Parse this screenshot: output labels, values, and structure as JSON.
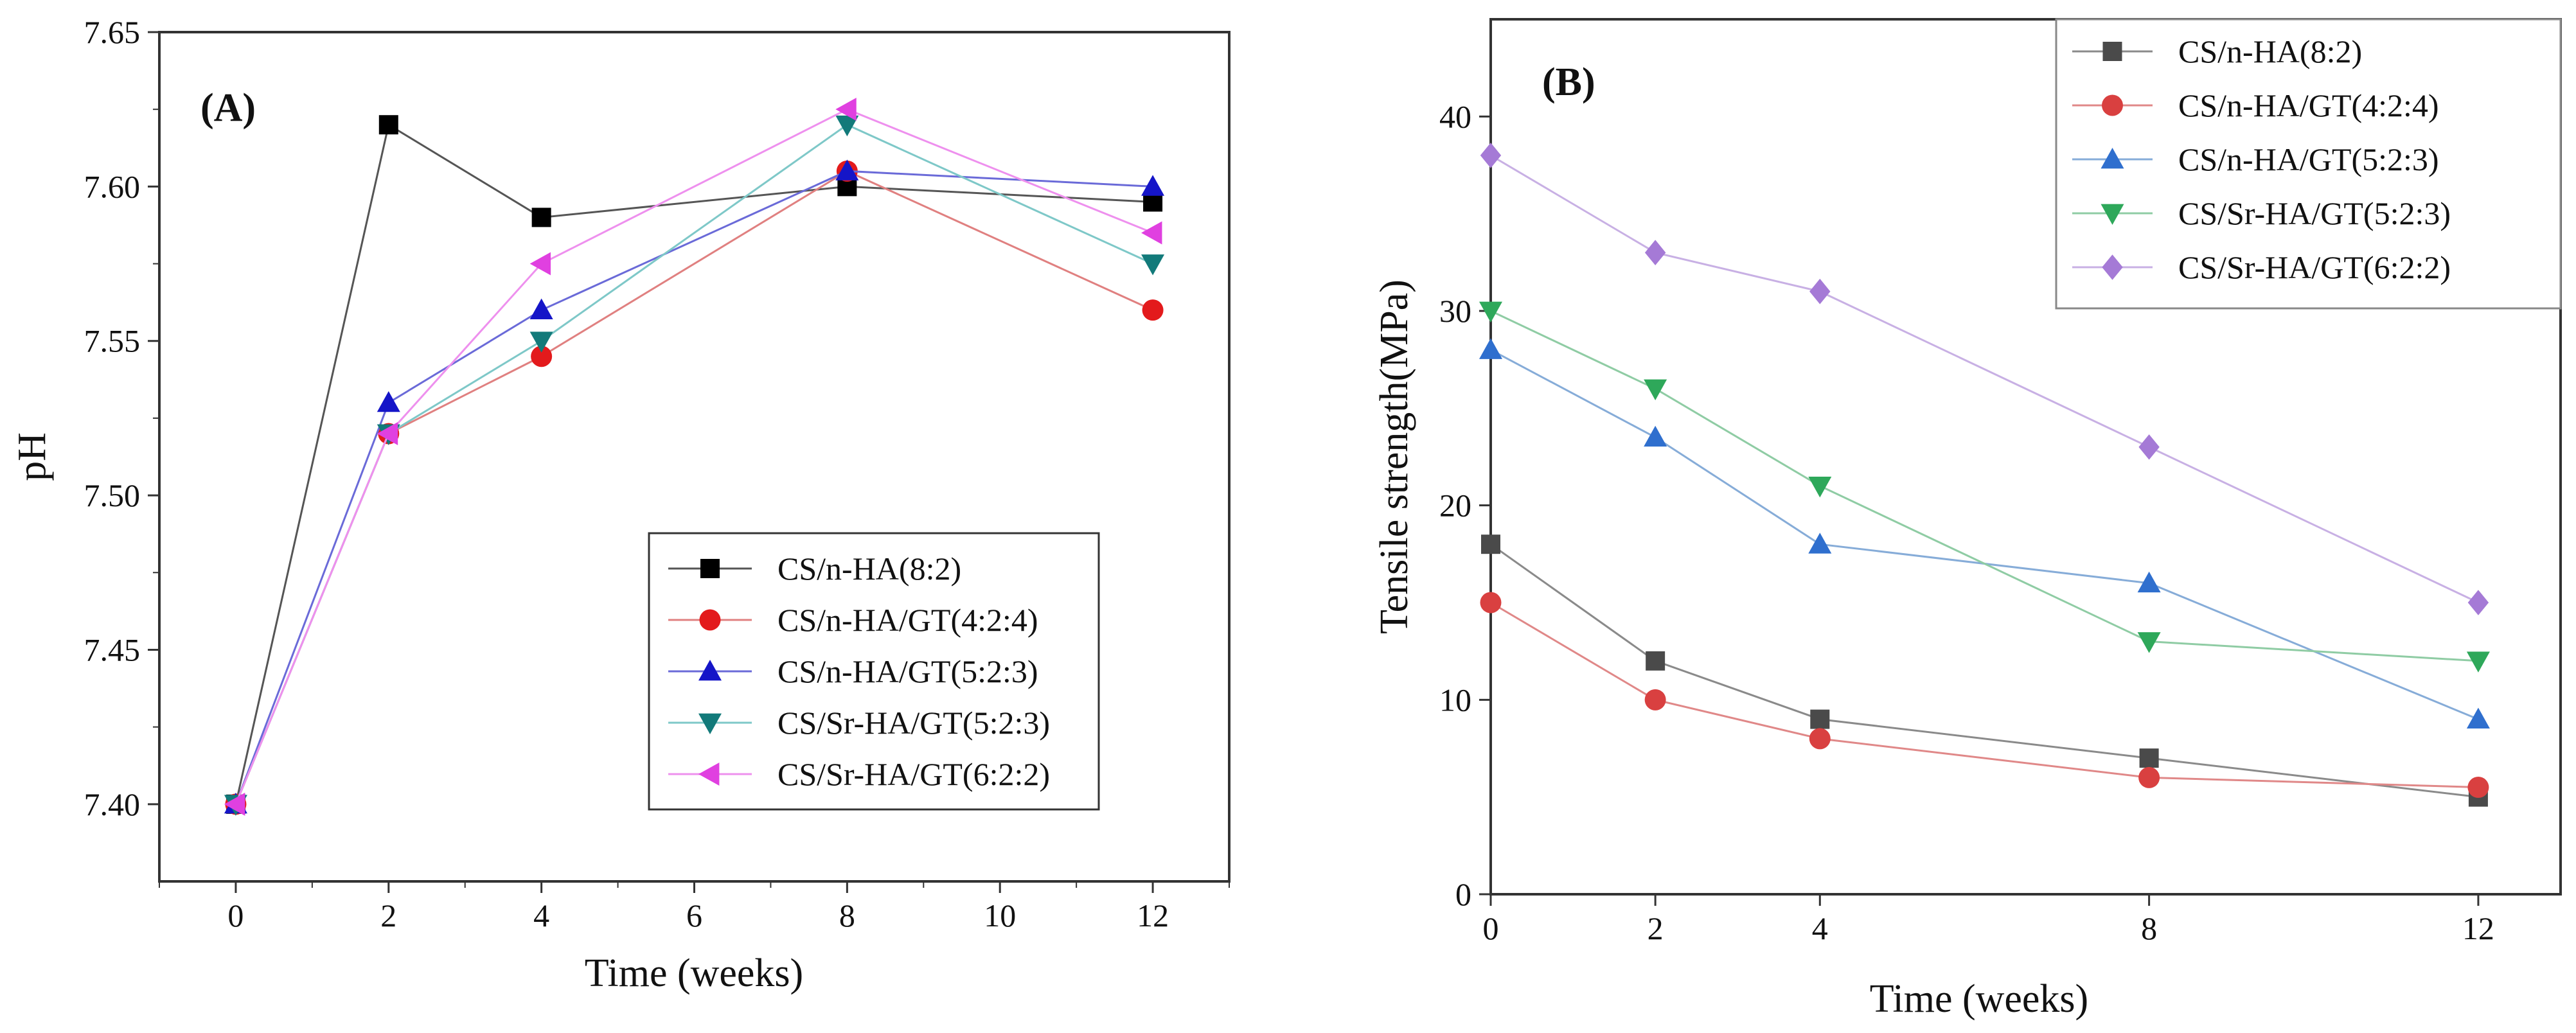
{
  "chart_data": [
    {
      "type": "line",
      "panel_label": "(A)",
      "xlabel": "Time (weeks)",
      "ylabel": "pH",
      "xlim": [
        -1,
        13
      ],
      "ylim": [
        7.375,
        7.65
      ],
      "x_ticks": [
        0,
        2,
        4,
        6,
        8,
        10,
        12
      ],
      "x_tick_labels": [
        "0",
        "2",
        "4",
        "6",
        "8",
        "10",
        "12"
      ],
      "y_ticks": [
        7.4,
        7.45,
        7.5,
        7.55,
        7.6,
        7.65
      ],
      "y_tick_labels": [
        "7.40",
        "7.45",
        "7.50",
        "7.55",
        "7.60",
        "7.65"
      ],
      "legend_position": "lower-right",
      "series": [
        {
          "name": "CS/n-HA(8:2)",
          "color": "#000000",
          "line_color": "#555555",
          "marker": "square",
          "points": [
            [
              0,
              7.4
            ],
            [
              2,
              7.62
            ],
            [
              4,
              7.59
            ],
            [
              8,
              7.6
            ],
            [
              12,
              7.595
            ]
          ]
        },
        {
          "name": "CS/n-HA/GT(4:2:4)",
          "color": "#e31a1c",
          "line_color": "#e08080",
          "marker": "circle",
          "points": [
            [
              0,
              7.4
            ],
            [
              2,
              7.52
            ],
            [
              4,
              7.545
            ],
            [
              8,
              7.605
            ],
            [
              12,
              7.56
            ]
          ]
        },
        {
          "name": "CS/n-HA/GT(5:2:3)",
          "color": "#1515c8",
          "line_color": "#6a6ad8",
          "marker": "triangle-up",
          "points": [
            [
              0,
              7.4
            ],
            [
              2,
              7.53
            ],
            [
              4,
              7.56
            ],
            [
              8,
              7.605
            ],
            [
              12,
              7.6
            ]
          ]
        },
        {
          "name": "CS/Sr-HA/GT(5:2:3)",
          "color": "#127a7a",
          "line_color": "#7ec8c8",
          "marker": "triangle-down",
          "points": [
            [
              0,
              7.4
            ],
            [
              2,
              7.52
            ],
            [
              4,
              7.55
            ],
            [
              8,
              7.62
            ],
            [
              12,
              7.575
            ]
          ]
        },
        {
          "name": "CS/Sr-HA/GT(6:2:2)",
          "color": "#e040e0",
          "line_color": "#ee90ee",
          "marker": "triangle-left",
          "points": [
            [
              0,
              7.4
            ],
            [
              2,
              7.52
            ],
            [
              4,
              7.575
            ],
            [
              8,
              7.625
            ],
            [
              12,
              7.585
            ]
          ]
        }
      ]
    },
    {
      "type": "line",
      "panel_label": "(B)",
      "xlabel": "Time (weeks)",
      "ylabel": "Tensile strength(MPa)",
      "xlim": [
        0,
        13
      ],
      "ylim": [
        0,
        45
      ],
      "x_ticks": [
        0,
        2,
        4,
        8,
        12
      ],
      "x_tick_labels": [
        "0",
        "2",
        "4",
        "8",
        "12"
      ],
      "y_ticks": [
        0,
        10,
        20,
        30,
        40
      ],
      "y_tick_labels": [
        "0",
        "10",
        "20",
        "30",
        "40"
      ],
      "legend_position": "top-right",
      "x_positions_note": "",
      "series": [
        {
          "name": "CS/n-HA(8:2)",
          "color": "#4a4a4a",
          "line_color": "#8a8a8a",
          "marker": "square",
          "points": [
            [
              0,
              18
            ],
            [
              2,
              12
            ],
            [
              4,
              9
            ],
            [
              8,
              7
            ],
            [
              12,
              5
            ]
          ]
        },
        {
          "name": "CS/n-HA/GT(4:2:4)",
          "color": "#d94040",
          "line_color": "#e08888",
          "marker": "circle",
          "points": [
            [
              0,
              15
            ],
            [
              2,
              10
            ],
            [
              4,
              8
            ],
            [
              8,
              6
            ],
            [
              12,
              5.5
            ]
          ]
        },
        {
          "name": "CS/n-HA/GT(5:2:3)",
          "color": "#2f6fce",
          "line_color": "#86acd8",
          "marker": "triangle-up",
          "points": [
            [
              0,
              28
            ],
            [
              2,
              23.5
            ],
            [
              4,
              18
            ],
            [
              8,
              16
            ],
            [
              12,
              9
            ]
          ]
        },
        {
          "name": "CS/Sr-HA/GT(5:2:3)",
          "color": "#2ea85a",
          "line_color": "#8fcca4",
          "marker": "triangle-down",
          "points": [
            [
              0,
              30
            ],
            [
              2,
              26
            ],
            [
              4,
              21
            ],
            [
              8,
              13
            ],
            [
              12,
              12
            ]
          ]
        },
        {
          "name": "CS/Sr-HA/GT(6:2:2)",
          "color": "#a57ad6",
          "line_color": "#c8b0e4",
          "marker": "diamond",
          "points": [
            [
              0,
              38
            ],
            [
              2,
              33
            ],
            [
              4,
              31
            ],
            [
              8,
              23
            ],
            [
              12,
              15
            ]
          ]
        }
      ]
    }
  ]
}
